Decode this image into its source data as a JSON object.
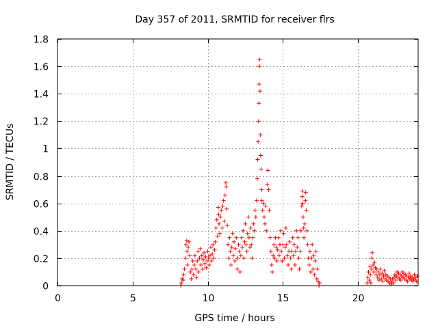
{
  "chart_data": {
    "type": "scatter",
    "title": "Day 357 of 2011, SRMTID for receiver flrs",
    "xlabel": "GPS time / hours",
    "ylabel": "SRMTID / TECUs",
    "xlim": [
      0,
      24
    ],
    "ylim": [
      0,
      1.8
    ],
    "xticks": [
      0,
      5,
      10,
      15,
      20
    ],
    "xtick_labels": [
      "0",
      "5",
      "10",
      "15",
      "20"
    ],
    "yticks": [
      0,
      0.2,
      0.4,
      0.6,
      0.8,
      1.0,
      1.2,
      1.4,
      1.6,
      1.8
    ],
    "ytick_labels": [
      "0",
      "0.2",
      "0.4",
      "0.6",
      "0.8",
      "1",
      "1.2",
      "1.4",
      "1.6",
      "1.8"
    ],
    "grid": true,
    "marker": "+",
    "color": "#ff0000",
    "series": [
      {
        "name": "SRMTID",
        "points": [
          [
            8.2,
            0.0
          ],
          [
            8.25,
            0.02
          ],
          [
            8.3,
            0.05
          ],
          [
            8.35,
            0.04
          ],
          [
            8.4,
            0.08
          ],
          [
            8.45,
            0.12
          ],
          [
            8.5,
            0.2
          ],
          [
            8.55,
            0.3
          ],
          [
            8.6,
            0.33
          ],
          [
            8.62,
            0.25
          ],
          [
            8.65,
            0.15
          ],
          [
            8.7,
            0.28
          ],
          [
            8.75,
            0.32
          ],
          [
            8.8,
            0.22
          ],
          [
            8.85,
            0.1
          ],
          [
            8.9,
            0.05
          ],
          [
            8.95,
            0.12
          ],
          [
            9.0,
            0.18
          ],
          [
            9.05,
            0.08
          ],
          [
            9.1,
            0.15
          ],
          [
            9.15,
            0.22
          ],
          [
            9.2,
            0.12
          ],
          [
            9.25,
            0.06
          ],
          [
            9.3,
            0.18
          ],
          [
            9.35,
            0.25
          ],
          [
            9.4,
            0.1
          ],
          [
            9.45,
            0.2
          ],
          [
            9.5,
            0.27
          ],
          [
            9.55,
            0.15
          ],
          [
            9.6,
            0.22
          ],
          [
            9.65,
            0.12
          ],
          [
            9.7,
            0.19
          ],
          [
            9.75,
            0.24
          ],
          [
            9.8,
            0.16
          ],
          [
            9.85,
            0.21
          ],
          [
            9.9,
            0.13
          ],
          [
            9.95,
            0.18
          ],
          [
            10.0,
            0.25
          ],
          [
            10.05,
            0.2
          ],
          [
            10.1,
            0.15
          ],
          [
            10.15,
            0.22
          ],
          [
            10.2,
            0.28
          ],
          [
            10.25,
            0.18
          ],
          [
            10.3,
            0.23
          ],
          [
            10.35,
            0.3
          ],
          [
            10.4,
            0.2
          ],
          [
            10.45,
            0.26
          ],
          [
            10.5,
            0.32
          ],
          [
            10.55,
            0.42
          ],
          [
            10.6,
            0.48
          ],
          [
            10.65,
            0.36
          ],
          [
            10.7,
            0.57
          ],
          [
            10.72,
            0.52
          ],
          [
            10.75,
            0.45
          ],
          [
            10.8,
            0.38
          ],
          [
            10.85,
            0.5
          ],
          [
            10.9,
            0.55
          ],
          [
            10.95,
            0.42
          ],
          [
            11.0,
            0.58
          ],
          [
            11.05,
            0.62
          ],
          [
            11.1,
            0.47
          ],
          [
            11.15,
            0.66
          ],
          [
            11.2,
            0.75
          ],
          [
            11.22,
            0.72
          ],
          [
            11.25,
            0.56
          ],
          [
            11.3,
            0.44
          ],
          [
            11.35,
            0.3
          ],
          [
            11.4,
            0.2
          ],
          [
            11.45,
            0.35
          ],
          [
            11.5,
            0.25
          ],
          [
            11.55,
            0.15
          ],
          [
            11.6,
            0.28
          ],
          [
            11.65,
            0.38
          ],
          [
            11.7,
            0.22
          ],
          [
            11.75,
            0.32
          ],
          [
            11.8,
            0.18
          ],
          [
            11.85,
            0.27
          ],
          [
            11.9,
            0.35
          ],
          [
            11.95,
            0.12
          ],
          [
            12.0,
            0.2
          ],
          [
            12.05,
            0.3
          ],
          [
            12.1,
            0.25
          ],
          [
            12.15,
            0.1
          ],
          [
            12.2,
            0.22
          ],
          [
            12.25,
            0.35
          ],
          [
            12.3,
            0.28
          ],
          [
            12.35,
            0.4
          ],
          [
            12.4,
            0.2
          ],
          [
            12.45,
            0.32
          ],
          [
            12.5,
            0.45
          ],
          [
            12.55,
            0.3
          ],
          [
            12.6,
            0.25
          ],
          [
            12.65,
            0.38
          ],
          [
            12.7,
            0.5
          ],
          [
            12.75,
            0.35
          ],
          [
            12.8,
            0.28
          ],
          [
            12.85,
            0.42
          ],
          [
            12.9,
            0.3
          ],
          [
            12.95,
            0.2
          ],
          [
            13.0,
            0.35
          ],
          [
            13.05,
            0.45
          ],
          [
            13.1,
            0.4
          ],
          [
            13.15,
            0.55
          ],
          [
            13.2,
            0.5
          ],
          [
            13.25,
            0.62
          ],
          [
            13.3,
            0.78
          ],
          [
            13.32,
            0.92
          ],
          [
            13.35,
            1.05
          ],
          [
            13.38,
            1.2
          ],
          [
            13.4,
            1.33
          ],
          [
            13.42,
            1.47
          ],
          [
            13.44,
            1.6
          ],
          [
            13.46,
            1.65
          ],
          [
            13.48,
            1.42
          ],
          [
            13.5,
            1.1
          ],
          [
            13.52,
            0.95
          ],
          [
            13.55,
            0.85
          ],
          [
            13.58,
            0.7
          ],
          [
            13.6,
            0.62
          ],
          [
            13.65,
            0.55
          ],
          [
            13.7,
            0.6
          ],
          [
            13.75,
            0.5
          ],
          [
            13.8,
            0.45
          ],
          [
            13.85,
            0.58
          ],
          [
            13.9,
            0.4
          ],
          [
            13.95,
            0.74
          ],
          [
            14.0,
            0.84
          ],
          [
            14.05,
            0.7
          ],
          [
            14.1,
            0.55
          ],
          [
            14.15,
            0.35
          ],
          [
            14.2,
            0.25
          ],
          [
            14.25,
            0.15
          ],
          [
            14.3,
            0.1
          ],
          [
            14.35,
            0.22
          ],
          [
            14.4,
            0.3
          ],
          [
            14.45,
            0.2
          ],
          [
            14.5,
            0.35
          ],
          [
            14.55,
            0.28
          ],
          [
            14.6,
            0.18
          ],
          [
            14.65,
            0.26
          ],
          [
            14.7,
            0.35
          ],
          [
            14.75,
            0.22
          ],
          [
            14.8,
            0.3
          ],
          [
            14.85,
            0.4
          ],
          [
            14.9,
            0.25
          ],
          [
            14.95,
            0.18
          ],
          [
            15.0,
            0.3
          ],
          [
            15.05,
            0.38
          ],
          [
            15.1,
            0.2
          ],
          [
            15.15,
            0.28
          ],
          [
            15.2,
            0.42
          ],
          [
            15.25,
            0.3
          ],
          [
            15.3,
            0.22
          ],
          [
            15.35,
            0.15
          ],
          [
            15.4,
            0.25
          ],
          [
            15.45,
            0.32
          ],
          [
            15.5,
            0.2
          ],
          [
            15.55,
            0.12
          ],
          [
            15.6,
            0.25
          ],
          [
            15.65,
            0.35
          ],
          [
            15.7,
            0.22
          ],
          [
            15.75,
            0.3
          ],
          [
            15.8,
            0.15
          ],
          [
            15.85,
            0.25
          ],
          [
            15.9,
            0.4
          ],
          [
            15.95,
            0.28
          ],
          [
            16.0,
            0.35
          ],
          [
            16.05,
            0.2
          ],
          [
            16.1,
            0.12
          ],
          [
            16.15,
            0.25
          ],
          [
            16.2,
            0.4
          ],
          [
            16.25,
            0.58
          ],
          [
            16.28,
            0.65
          ],
          [
            16.3,
            0.69
          ],
          [
            16.32,
            0.6
          ],
          [
            16.35,
            0.5
          ],
          [
            16.38,
            0.42
          ],
          [
            16.4,
            0.35
          ],
          [
            16.45,
            0.45
          ],
          [
            16.5,
            0.62
          ],
          [
            16.52,
            0.68
          ],
          [
            16.55,
            0.55
          ],
          [
            16.6,
            0.4
          ],
          [
            16.65,
            0.3
          ],
          [
            16.7,
            0.2
          ],
          [
            16.75,
            0.15
          ],
          [
            16.8,
            0.25
          ],
          [
            16.85,
            0.1
          ],
          [
            16.9,
            0.2
          ],
          [
            16.95,
            0.3
          ],
          [
            17.0,
            0.12
          ],
          [
            17.05,
            0.22
          ],
          [
            17.1,
            0.08
          ],
          [
            17.15,
            0.18
          ],
          [
            17.2,
            0.25
          ],
          [
            17.25,
            0.05
          ],
          [
            17.3,
            0.12
          ],
          [
            17.35,
            0.03
          ],
          [
            17.4,
            0.0
          ],
          [
            17.45,
            0.02
          ],
          [
            20.6,
            0.02
          ],
          [
            20.65,
            0.06
          ],
          [
            20.7,
            0.1
          ],
          [
            20.75,
            0.04
          ],
          [
            20.8,
            0.14
          ],
          [
            20.82,
            0.08
          ],
          [
            20.85,
            0.02
          ],
          [
            20.9,
            0.12
          ],
          [
            20.92,
            0.2
          ],
          [
            20.95,
            0.24
          ],
          [
            21.0,
            0.15
          ],
          [
            21.05,
            0.1
          ],
          [
            21.1,
            0.17
          ],
          [
            21.15,
            0.13
          ],
          [
            21.2,
            0.08
          ],
          [
            21.25,
            0.12
          ],
          [
            21.3,
            0.06
          ],
          [
            21.35,
            0.1
          ],
          [
            21.4,
            0.04
          ],
          [
            21.45,
            0.08
          ],
          [
            21.5,
            0.12
          ],
          [
            21.55,
            0.05
          ],
          [
            21.6,
            0.09
          ],
          [
            21.65,
            0.03
          ],
          [
            21.7,
            0.07
          ],
          [
            21.75,
            0.11
          ],
          [
            21.8,
            0.05
          ],
          [
            21.85,
            0.08
          ],
          [
            21.9,
            0.04
          ],
          [
            21.95,
            0.07
          ],
          [
            22.0,
            0.03
          ],
          [
            22.05,
            0.06
          ],
          [
            22.1,
            0.02
          ],
          [
            22.15,
            0.05
          ],
          [
            22.2,
            0.01
          ],
          [
            22.25,
            0.03
          ],
          [
            22.3,
            0.05
          ],
          [
            22.35,
            0.02
          ],
          [
            22.4,
            0.06
          ],
          [
            22.45,
            0.08
          ],
          [
            22.5,
            0.04
          ],
          [
            22.55,
            0.07
          ],
          [
            22.6,
            0.1
          ],
          [
            22.65,
            0.06
          ],
          [
            22.7,
            0.09
          ],
          [
            22.75,
            0.05
          ],
          [
            22.8,
            0.08
          ],
          [
            22.85,
            0.04
          ],
          [
            22.9,
            0.07
          ],
          [
            22.95,
            0.1
          ],
          [
            23.0,
            0.06
          ],
          [
            23.05,
            0.09
          ],
          [
            23.1,
            0.05
          ],
          [
            23.15,
            0.08
          ],
          [
            23.2,
            0.04
          ],
          [
            23.25,
            0.07
          ],
          [
            23.3,
            0.03
          ],
          [
            23.35,
            0.06
          ],
          [
            23.4,
            0.09
          ],
          [
            23.45,
            0.05
          ],
          [
            23.5,
            0.07
          ],
          [
            23.55,
            0.04
          ],
          [
            23.6,
            0.06
          ],
          [
            23.65,
            0.03
          ],
          [
            23.7,
            0.05
          ],
          [
            23.75,
            0.08
          ],
          [
            23.8,
            0.04
          ],
          [
            23.85,
            0.06
          ],
          [
            23.9,
            0.03
          ],
          [
            23.95,
            0.07
          ]
        ]
      }
    ]
  }
}
